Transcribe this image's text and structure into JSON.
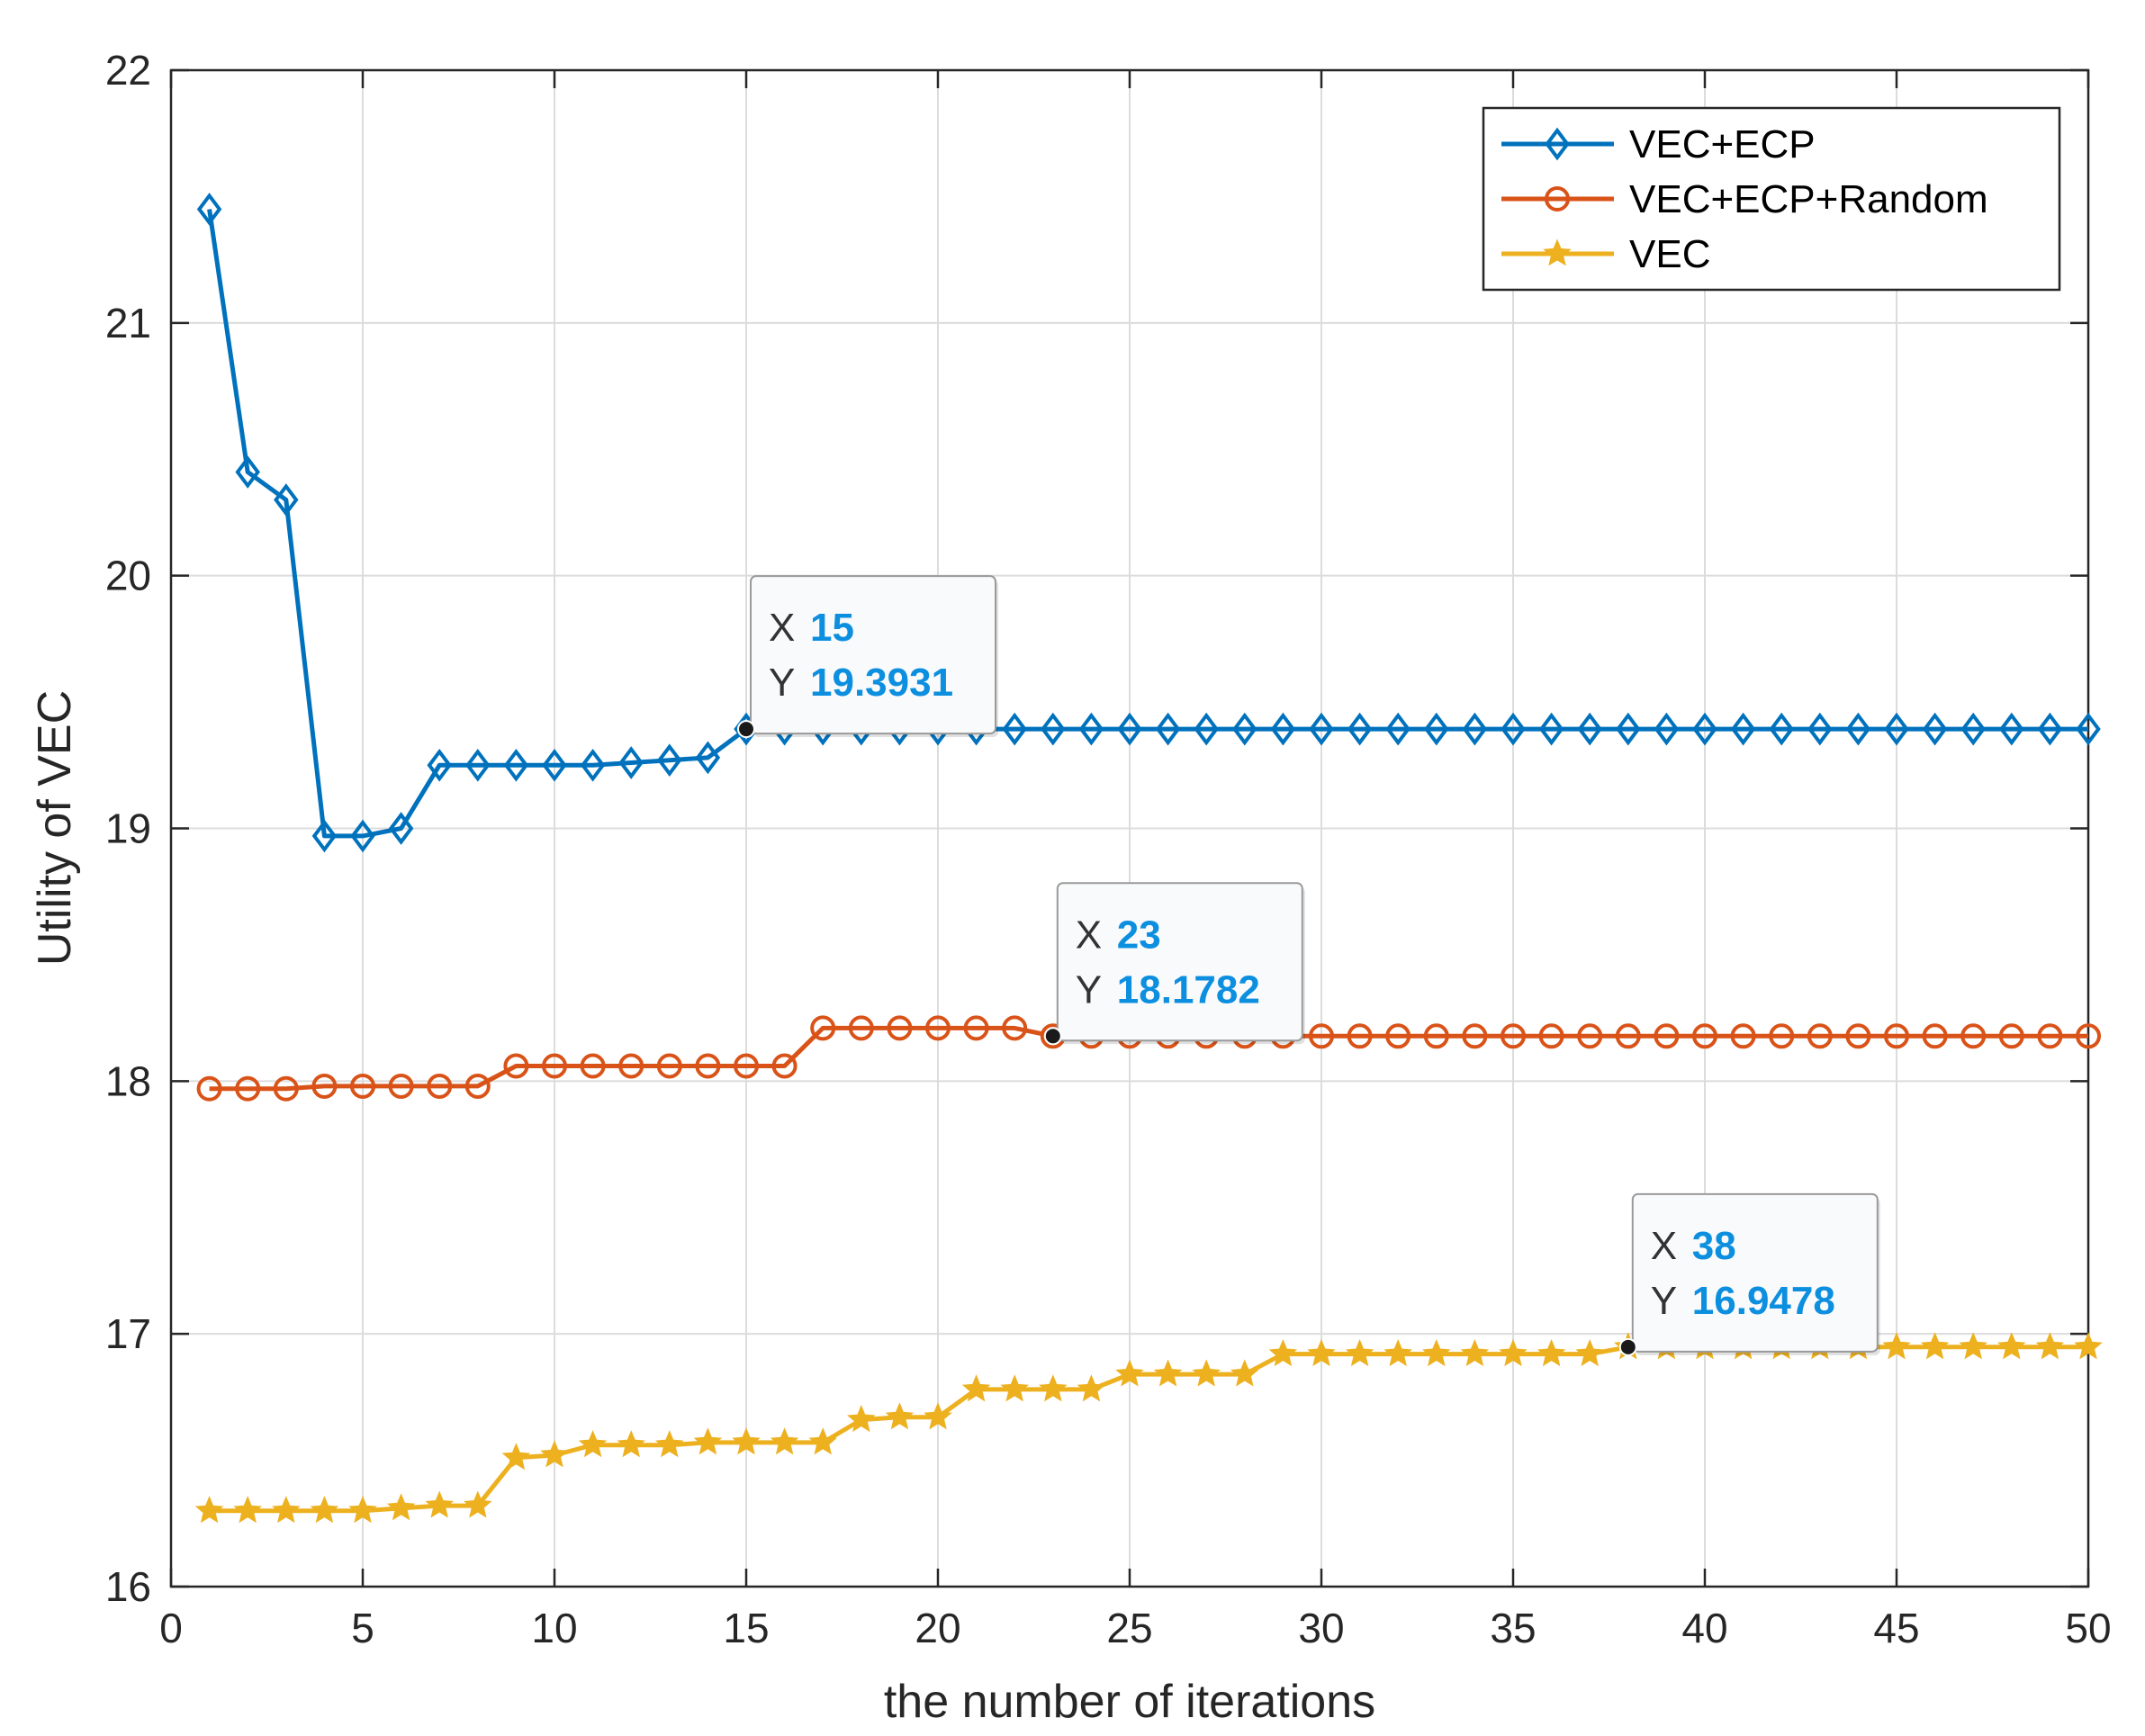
{
  "chart_data": {
    "type": "line",
    "title": "",
    "xlabel": "the number of iterations",
    "ylabel": "Utility of VEC",
    "xlim": [
      0,
      50
    ],
    "ylim": [
      16,
      22
    ],
    "xticks": [
      0,
      5,
      10,
      15,
      20,
      25,
      30,
      35,
      40,
      45,
      50
    ],
    "yticks": [
      16,
      17,
      18,
      19,
      20,
      21,
      22
    ],
    "grid": true,
    "legend_position": "top-right",
    "series": [
      {
        "name": "VEC+ECP",
        "color": "#0072bd",
        "marker": "diamond",
        "x": [
          1,
          2,
          3,
          4,
          5,
          6,
          7,
          8,
          9,
          10,
          11,
          12,
          13,
          14,
          15,
          16,
          17,
          18,
          19,
          20,
          21,
          22,
          23,
          24,
          25,
          26,
          27,
          28,
          29,
          30,
          31,
          32,
          33,
          34,
          35,
          36,
          37,
          38,
          39,
          40,
          41,
          42,
          43,
          44,
          45,
          46,
          47,
          48,
          49,
          50
        ],
        "y": [
          21.45,
          20.41,
          20.3,
          18.97,
          18.97,
          19.0,
          19.25,
          19.25,
          19.25,
          19.25,
          19.25,
          19.26,
          19.27,
          19.28,
          19.3931,
          19.3931,
          19.3931,
          19.3931,
          19.3931,
          19.3931,
          19.3931,
          19.3931,
          19.3931,
          19.3931,
          19.3931,
          19.3931,
          19.3931,
          19.3931,
          19.3931,
          19.3931,
          19.3931,
          19.3931,
          19.3931,
          19.3931,
          19.3931,
          19.3931,
          19.3931,
          19.3931,
          19.3931,
          19.3931,
          19.3931,
          19.3931,
          19.3931,
          19.3931,
          19.3931,
          19.3931,
          19.3931,
          19.3931,
          19.3931,
          19.3931
        ]
      },
      {
        "name": "VEC+ECP+Random",
        "color": "#d95319",
        "marker": "circle",
        "x": [
          1,
          2,
          3,
          4,
          5,
          6,
          7,
          8,
          9,
          10,
          11,
          12,
          13,
          14,
          15,
          16,
          17,
          18,
          19,
          20,
          21,
          22,
          23,
          24,
          25,
          26,
          27,
          28,
          29,
          30,
          31,
          32,
          33,
          34,
          35,
          36,
          37,
          38,
          39,
          40,
          41,
          42,
          43,
          44,
          45,
          46,
          47,
          48,
          49,
          50
        ],
        "y": [
          17.97,
          17.97,
          17.97,
          17.98,
          17.98,
          17.98,
          17.98,
          17.98,
          18.06,
          18.06,
          18.06,
          18.06,
          18.06,
          18.06,
          18.06,
          18.06,
          18.21,
          18.21,
          18.21,
          18.21,
          18.21,
          18.21,
          18.1782,
          18.1782,
          18.1782,
          18.1782,
          18.1782,
          18.1782,
          18.1782,
          18.1782,
          18.1782,
          18.1782,
          18.1782,
          18.1782,
          18.1782,
          18.1782,
          18.1782,
          18.1782,
          18.1782,
          18.1782,
          18.1782,
          18.1782,
          18.1782,
          18.1782,
          18.1782,
          18.1782,
          18.1782,
          18.1782,
          18.1782,
          18.1782
        ]
      },
      {
        "name": "VEC",
        "color": "#edb120",
        "marker": "star",
        "x": [
          1,
          2,
          3,
          4,
          5,
          6,
          7,
          8,
          9,
          10,
          11,
          12,
          13,
          14,
          15,
          16,
          17,
          18,
          19,
          20,
          21,
          22,
          23,
          24,
          25,
          26,
          27,
          28,
          29,
          30,
          31,
          32,
          33,
          34,
          35,
          36,
          37,
          38,
          39,
          40,
          41,
          42,
          43,
          44,
          45,
          46,
          47,
          48,
          49,
          50
        ],
        "y": [
          16.3,
          16.3,
          16.3,
          16.3,
          16.3,
          16.31,
          16.32,
          16.32,
          16.51,
          16.52,
          16.56,
          16.56,
          16.56,
          16.57,
          16.57,
          16.57,
          16.57,
          16.66,
          16.67,
          16.67,
          16.78,
          16.78,
          16.78,
          16.78,
          16.84,
          16.84,
          16.84,
          16.84,
          16.92,
          16.92,
          16.92,
          16.92,
          16.92,
          16.92,
          16.92,
          16.92,
          16.92,
          16.9478,
          16.9478,
          16.9478,
          16.9478,
          16.9478,
          16.9478,
          16.9478,
          16.9478,
          16.9478,
          16.9478,
          16.9478,
          16.9478,
          16.9478
        ]
      }
    ],
    "datatips": [
      {
        "series": "VEC+ECP",
        "x_label": "X",
        "x_value": "15",
        "y_label": "Y",
        "y_value": "19.3931",
        "x": 15,
        "y": 19.3931
      },
      {
        "series": "VEC+ECP+Random",
        "x_label": "X",
        "x_value": "23",
        "y_label": "Y",
        "y_value": "18.1782",
        "x": 23,
        "y": 18.1782
      },
      {
        "series": "VEC",
        "x_label": "X",
        "x_value": "38",
        "y_label": "Y",
        "y_value": "16.9478",
        "x": 38,
        "y": 16.9478
      }
    ]
  }
}
